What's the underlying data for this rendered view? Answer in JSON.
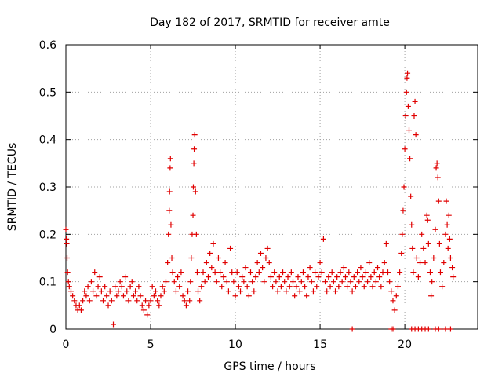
{
  "colors": {
    "series": "#e00000",
    "axis": "#000000",
    "grid": "#a0a0a0"
  },
  "chart_data": {
    "type": "scatter",
    "title": "Day 182 of 2017, SRMTID for receiver amte",
    "xlabel": "GPS time / hours",
    "ylabel": "SRMTID / TECUs",
    "xlim": [
      0,
      24.3
    ],
    "ylim": [
      0,
      0.6
    ],
    "xticks": [
      0,
      5,
      10,
      15,
      20
    ],
    "xtick_labels": [
      "0",
      "5",
      "10",
      "15",
      "20"
    ],
    "yticks": [
      0,
      0.1,
      0.2,
      0.3,
      0.4,
      0.5,
      0.6
    ],
    "ytick_labels": [
      "0",
      "0.1",
      "0.2",
      "0.3",
      "0.4",
      "0.5",
      "0.6"
    ],
    "grid": true,
    "marker": "+",
    "series": [
      {
        "name": "SRMTID",
        "points": [
          [
            0.0,
            0.21
          ],
          [
            0.03,
            0.19
          ],
          [
            0.05,
            0.18
          ],
          [
            0.07,
            0.15
          ],
          [
            0.1,
            0.12
          ],
          [
            0.15,
            0.1
          ],
          [
            0.2,
            0.09
          ],
          [
            0.3,
            0.08
          ],
          [
            0.4,
            0.07
          ],
          [
            0.5,
            0.06
          ],
          [
            0.6,
            0.05
          ],
          [
            0.7,
            0.04
          ],
          [
            0.8,
            0.05
          ],
          [
            0.9,
            0.04
          ],
          [
            1.0,
            0.06
          ],
          [
            1.1,
            0.08
          ],
          [
            1.2,
            0.07
          ],
          [
            1.3,
            0.09
          ],
          [
            1.4,
            0.06
          ],
          [
            1.5,
            0.1
          ],
          [
            1.6,
            0.08
          ],
          [
            1.7,
            0.12
          ],
          [
            1.8,
            0.07
          ],
          [
            1.9,
            0.09
          ],
          [
            2.0,
            0.11
          ],
          [
            2.1,
            0.08
          ],
          [
            2.2,
            0.06
          ],
          [
            2.3,
            0.09
          ],
          [
            2.4,
            0.07
          ],
          [
            2.5,
            0.05
          ],
          [
            2.6,
            0.08
          ],
          [
            2.7,
            0.06
          ],
          [
            2.8,
            0.01
          ],
          [
            2.9,
            0.09
          ],
          [
            3.0,
            0.07
          ],
          [
            3.1,
            0.08
          ],
          [
            3.2,
            0.1
          ],
          [
            3.3,
            0.09
          ],
          [
            3.4,
            0.07
          ],
          [
            3.5,
            0.11
          ],
          [
            3.6,
            0.08
          ],
          [
            3.7,
            0.06
          ],
          [
            3.8,
            0.09
          ],
          [
            3.9,
            0.1
          ],
          [
            4.0,
            0.07
          ],
          [
            4.1,
            0.08
          ],
          [
            4.2,
            0.06
          ],
          [
            4.3,
            0.09
          ],
          [
            4.4,
            0.07
          ],
          [
            4.5,
            0.05
          ],
          [
            4.6,
            0.04
          ],
          [
            4.7,
            0.06
          ],
          [
            4.8,
            0.03
          ],
          [
            4.9,
            0.05
          ],
          [
            5.0,
            0.06
          ],
          [
            5.1,
            0.09
          ],
          [
            5.2,
            0.07
          ],
          [
            5.3,
            0.08
          ],
          [
            5.4,
            0.06
          ],
          [
            5.5,
            0.05
          ],
          [
            5.6,
            0.07
          ],
          [
            5.7,
            0.09
          ],
          [
            5.8,
            0.08
          ],
          [
            5.9,
            0.1
          ],
          [
            6.0,
            0.14
          ],
          [
            6.05,
            0.2
          ],
          [
            6.1,
            0.25
          ],
          [
            6.12,
            0.29
          ],
          [
            6.15,
            0.34
          ],
          [
            6.17,
            0.36
          ],
          [
            6.2,
            0.22
          ],
          [
            6.25,
            0.15
          ],
          [
            6.3,
            0.12
          ],
          [
            6.4,
            0.1
          ],
          [
            6.5,
            0.08
          ],
          [
            6.6,
            0.11
          ],
          [
            6.7,
            0.09
          ],
          [
            6.8,
            0.12
          ],
          [
            6.9,
            0.07
          ],
          [
            7.0,
            0.06
          ],
          [
            7.1,
            0.05
          ],
          [
            7.2,
            0.08
          ],
          [
            7.3,
            0.06
          ],
          [
            7.35,
            0.1
          ],
          [
            7.4,
            0.15
          ],
          [
            7.45,
            0.2
          ],
          [
            7.5,
            0.24
          ],
          [
            7.52,
            0.3
          ],
          [
            7.55,
            0.35
          ],
          [
            7.57,
            0.38
          ],
          [
            7.6,
            0.41
          ],
          [
            7.65,
            0.29
          ],
          [
            7.7,
            0.2
          ],
          [
            7.75,
            0.12
          ],
          [
            7.8,
            0.08
          ],
          [
            7.9,
            0.06
          ],
          [
            8.0,
            0.09
          ],
          [
            8.1,
            0.12
          ],
          [
            8.2,
            0.1
          ],
          [
            8.3,
            0.14
          ],
          [
            8.4,
            0.11
          ],
          [
            8.5,
            0.16
          ],
          [
            8.6,
            0.13
          ],
          [
            8.7,
            0.18
          ],
          [
            8.8,
            0.12
          ],
          [
            8.9,
            0.1
          ],
          [
            9.0,
            0.15
          ],
          [
            9.1,
            0.12
          ],
          [
            9.2,
            0.09
          ],
          [
            9.3,
            0.11
          ],
          [
            9.4,
            0.14
          ],
          [
            9.5,
            0.1
          ],
          [
            9.6,
            0.08
          ],
          [
            9.7,
            0.17
          ],
          [
            9.8,
            0.12
          ],
          [
            9.9,
            0.1
          ],
          [
            10.0,
            0.07
          ],
          [
            10.1,
            0.12
          ],
          [
            10.2,
            0.09
          ],
          [
            10.3,
            0.08
          ],
          [
            10.4,
            0.11
          ],
          [
            10.5,
            0.1
          ],
          [
            10.6,
            0.13
          ],
          [
            10.7,
            0.09
          ],
          [
            10.8,
            0.07
          ],
          [
            10.9,
            0.12
          ],
          [
            11.0,
            0.1
          ],
          [
            11.1,
            0.08
          ],
          [
            11.2,
            0.11
          ],
          [
            11.3,
            0.14
          ],
          [
            11.4,
            0.12
          ],
          [
            11.5,
            0.16
          ],
          [
            11.6,
            0.13
          ],
          [
            11.7,
            0.1
          ],
          [
            11.8,
            0.15
          ],
          [
            11.9,
            0.17
          ],
          [
            12.0,
            0.14
          ],
          [
            12.1,
            0.11
          ],
          [
            12.2,
            0.09
          ],
          [
            12.3,
            0.12
          ],
          [
            12.4,
            0.1
          ],
          [
            12.5,
            0.08
          ],
          [
            12.6,
            0.11
          ],
          [
            12.7,
            0.09
          ],
          [
            12.8,
            0.12
          ],
          [
            12.9,
            0.1
          ],
          [
            13.0,
            0.08
          ],
          [
            13.1,
            0.11
          ],
          [
            13.2,
            0.09
          ],
          [
            13.3,
            0.12
          ],
          [
            13.4,
            0.1
          ],
          [
            13.5,
            0.07
          ],
          [
            13.6,
            0.09
          ],
          [
            13.7,
            0.11
          ],
          [
            13.8,
            0.08
          ],
          [
            13.9,
            0.1
          ],
          [
            14.0,
            0.12
          ],
          [
            14.1,
            0.09
          ],
          [
            14.2,
            0.07
          ],
          [
            14.3,
            0.11
          ],
          [
            14.4,
            0.13
          ],
          [
            14.5,
            0.1
          ],
          [
            14.6,
            0.08
          ],
          [
            14.7,
            0.12
          ],
          [
            14.8,
            0.09
          ],
          [
            14.9,
            0.11
          ],
          [
            15.0,
            0.14
          ],
          [
            15.1,
            0.12
          ],
          [
            15.2,
            0.19
          ],
          [
            15.3,
            0.1
          ],
          [
            15.4,
            0.08
          ],
          [
            15.5,
            0.11
          ],
          [
            15.6,
            0.09
          ],
          [
            15.7,
            0.12
          ],
          [
            15.8,
            0.1
          ],
          [
            15.9,
            0.08
          ],
          [
            16.0,
            0.11
          ],
          [
            16.1,
            0.09
          ],
          [
            16.2,
            0.12
          ],
          [
            16.3,
            0.1
          ],
          [
            16.4,
            0.13
          ],
          [
            16.5,
            0.11
          ],
          [
            16.6,
            0.09
          ],
          [
            16.7,
            0.12
          ],
          [
            16.8,
            0.1
          ],
          [
            16.9,
            0.08
          ],
          [
            17.0,
            0.11
          ],
          [
            17.1,
            0.09
          ],
          [
            17.2,
            0.12
          ],
          [
            17.3,
            0.1
          ],
          [
            17.4,
            0.13
          ],
          [
            17.5,
            0.11
          ],
          [
            17.6,
            0.09
          ],
          [
            17.7,
            0.12
          ],
          [
            17.8,
            0.1
          ],
          [
            17.9,
            0.14
          ],
          [
            18.0,
            0.11
          ],
          [
            18.1,
            0.09
          ],
          [
            18.2,
            0.12
          ],
          [
            18.3,
            0.1
          ],
          [
            18.4,
            0.13
          ],
          [
            18.5,
            0.11
          ],
          [
            18.6,
            0.09
          ],
          [
            18.7,
            0.12
          ],
          [
            18.8,
            0.14
          ],
          [
            18.9,
            0.18
          ],
          [
            19.0,
            0.12
          ],
          [
            19.1,
            0.1
          ],
          [
            19.2,
            0.08
          ],
          [
            19.3,
            0.06
          ],
          [
            19.4,
            0.04
          ],
          [
            19.5,
            0.07
          ],
          [
            19.6,
            0.09
          ],
          [
            19.7,
            0.12
          ],
          [
            19.8,
            0.16
          ],
          [
            19.85,
            0.2
          ],
          [
            19.9,
            0.25
          ],
          [
            19.95,
            0.3
          ],
          [
            20.0,
            0.38
          ],
          [
            20.05,
            0.45
          ],
          [
            20.1,
            0.5
          ],
          [
            20.13,
            0.53
          ],
          [
            20.16,
            0.54
          ],
          [
            20.2,
            0.47
          ],
          [
            20.25,
            0.42
          ],
          [
            20.3,
            0.36
          ],
          [
            20.35,
            0.28
          ],
          [
            20.4,
            0.22
          ],
          [
            20.45,
            0.17
          ],
          [
            20.5,
            0.12
          ],
          [
            20.55,
            0.45
          ],
          [
            20.6,
            0.48
          ],
          [
            20.65,
            0.41
          ],
          [
            20.7,
            0.15
          ],
          [
            20.8,
            0.11
          ],
          [
            20.9,
            0.14
          ],
          [
            21.0,
            0.2
          ],
          [
            21.1,
            0.17
          ],
          [
            21.2,
            0.14
          ],
          [
            21.3,
            0.24
          ],
          [
            21.35,
            0.23
          ],
          [
            21.4,
            0.18
          ],
          [
            21.5,
            0.12
          ],
          [
            21.55,
            0.07
          ],
          [
            21.6,
            0.1
          ],
          [
            21.7,
            0.15
          ],
          [
            21.8,
            0.21
          ],
          [
            21.85,
            0.34
          ],
          [
            21.9,
            0.35
          ],
          [
            21.95,
            0.32
          ],
          [
            22.0,
            0.27
          ],
          [
            22.05,
            0.18
          ],
          [
            22.1,
            0.12
          ],
          [
            22.2,
            0.09
          ],
          [
            22.3,
            0.14
          ],
          [
            22.4,
            0.2
          ],
          [
            22.45,
            0.27
          ],
          [
            22.5,
            0.22
          ],
          [
            22.55,
            0.17
          ],
          [
            22.6,
            0.24
          ],
          [
            22.65,
            0.19
          ],
          [
            22.7,
            0.15
          ],
          [
            22.8,
            0.13
          ],
          [
            22.85,
            0.11
          ],
          [
            16.9,
            0.0
          ],
          [
            19.2,
            0.0
          ],
          [
            19.3,
            0.0
          ],
          [
            20.4,
            0.0
          ],
          [
            20.6,
            0.0
          ],
          [
            20.8,
            0.0
          ],
          [
            21.0,
            0.0
          ],
          [
            21.2,
            0.0
          ],
          [
            21.4,
            0.0
          ],
          [
            21.8,
            0.0
          ],
          [
            22.0,
            0.0
          ],
          [
            22.4,
            0.0
          ],
          [
            22.7,
            0.0
          ]
        ]
      }
    ]
  }
}
